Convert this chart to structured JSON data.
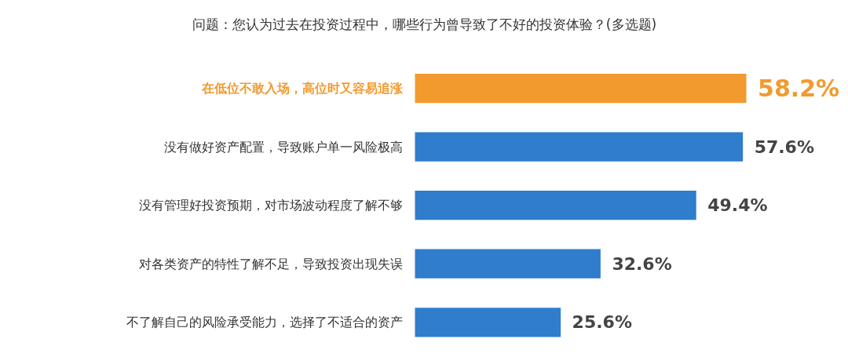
{
  "chart_data": {
    "type": "bar",
    "orientation": "horizontal",
    "title": "问题：您认为过去在投资过程中，哪些行为曾导致了不好的投资体验？(多选题)",
    "categories": [
      "在低位不敢入场，高位时又容易追涨",
      "没有做好资产配置，导致账户单一风险极高",
      "没有管理好投资预期，对市场波动程度了解不够",
      "对各类资产的特性了解不足，导致投资出现失误",
      "不了解自己的风险承受能力，选择了不适合的资产"
    ],
    "values": [
      58.2,
      57.6,
      49.4,
      32.6,
      25.6
    ],
    "value_labels": [
      "58.2%",
      "57.6%",
      "49.4%",
      "32.6%",
      "25.6%"
    ],
    "colors": [
      "#f29a2e",
      "#2f7dcc",
      "#2f7dcc",
      "#2f7dcc",
      "#2f7dcc"
    ],
    "grid": false
  }
}
